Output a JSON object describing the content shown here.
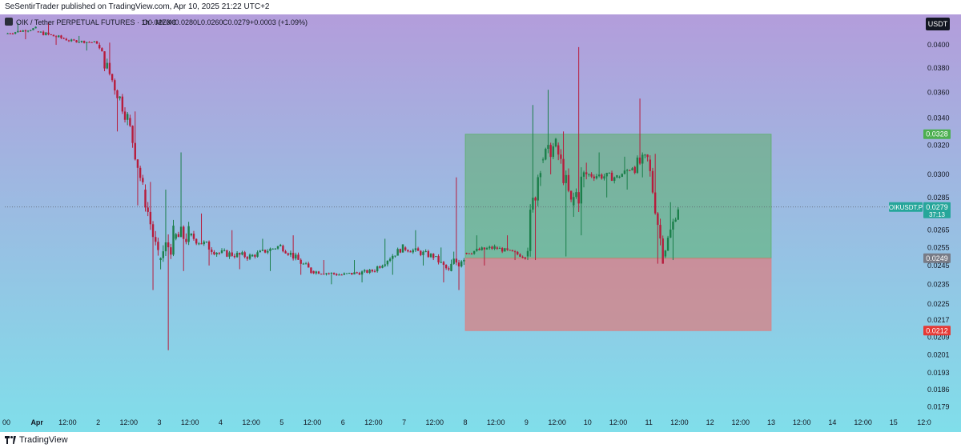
{
  "header": {
    "published": "SeSentirTrader published on TradingView.com, Apr 10, 2025 21:22 UTC+2"
  },
  "legend": {
    "symbol": "OIK / Tether PERPETUAL FUTURES · 1h · MEXC",
    "open": "O0.0276",
    "high": "H0.0280",
    "low": "L0.0260",
    "close": "C0.0279",
    "change": "+0.0003 (+1.09%)"
  },
  "currency_badge": "USDT",
  "footer": {
    "brand": "TradingView"
  },
  "colors": {
    "bg_top": "#b39ddb",
    "bg_bottom": "#80deea",
    "up": "#1b7f4a",
    "down": "#b71c3c",
    "profit_zone": "#4caf50",
    "loss_zone": "#e57373",
    "target_label": "#4caf50",
    "stop_label": "#e53935",
    "entry_label": "#787b86",
    "last_price_label": "#26a69a"
  },
  "chart_data": {
    "type": "candlestick",
    "symbol": "OIKUSDT.P",
    "interval": "1h",
    "exchange": "MEXC",
    "y_axis": {
      "ticks": [
        "0.0400",
        "0.0380",
        "0.0360",
        "0.0340",
        "0.0320",
        "0.0300",
        "0.0285",
        "0.0265",
        "0.0255",
        "0.0245",
        "0.0235",
        "0.0225",
        "0.0217",
        "0.0209",
        "0.0201",
        "0.0193",
        "0.0186",
        "0.0179"
      ],
      "scale": "log",
      "ylim": [
        0.0176,
        0.0428
      ]
    },
    "x_axis": {
      "ticks": [
        "00",
        "Apr",
        "12:00",
        "2",
        "12:00",
        "3",
        "12:00",
        "4",
        "12:00",
        "5",
        "12:00",
        "6",
        "12:00",
        "7",
        "12:00",
        "8",
        "12:00",
        "9",
        "12:00",
        "10",
        "12:00",
        "11",
        "12:00",
        "12",
        "12:00",
        "13",
        "12:00",
        "14",
        "12:00",
        "15",
        "12:0"
      ],
      "start": "Mar 31 00:00",
      "hours_per_tick": 12
    },
    "candles_hourly_close_approx": [
      {
        "t": "Mar 31 00:00",
        "o": 0.041,
        "h": 0.042,
        "l": 0.0405,
        "c": 0.0415
      },
      {
        "t": "Mar 31 12:00",
        "o": 0.0412,
        "h": 0.042,
        "l": 0.04,
        "c": 0.0405
      },
      {
        "t": "Apr 1 00:00",
        "o": 0.0404,
        "h": 0.0408,
        "l": 0.0395,
        "c": 0.0402
      },
      {
        "t": "Apr 1 12:00",
        "o": 0.04,
        "h": 0.0402,
        "l": 0.033,
        "c": 0.034
      },
      {
        "t": "Apr 2 00:00",
        "o": 0.034,
        "h": 0.0345,
        "l": 0.028,
        "c": 0.029
      },
      {
        "t": "Apr 2 06:00",
        "o": 0.029,
        "h": 0.0295,
        "l": 0.0232,
        "c": 0.0248
      },
      {
        "t": "Apr 2 12:00",
        "o": 0.0248,
        "h": 0.029,
        "l": 0.0203,
        "c": 0.026
      },
      {
        "t": "Apr 2 18:00",
        "o": 0.026,
        "h": 0.0315,
        "l": 0.0242,
        "c": 0.0262
      },
      {
        "t": "Apr 3 00:00",
        "o": 0.0262,
        "h": 0.0275,
        "l": 0.0245,
        "c": 0.0252
      },
      {
        "t": "Apr 3 12:00",
        "o": 0.0252,
        "h": 0.0265,
        "l": 0.0243,
        "c": 0.025
      },
      {
        "t": "Apr 4 00:00",
        "o": 0.025,
        "h": 0.026,
        "l": 0.0242,
        "c": 0.0256
      },
      {
        "t": "Apr 4 12:00",
        "o": 0.0256,
        "h": 0.0262,
        "l": 0.024,
        "c": 0.0242
      },
      {
        "t": "Apr 5 00:00",
        "o": 0.0242,
        "h": 0.0248,
        "l": 0.0235,
        "c": 0.024
      },
      {
        "t": "Apr 5 12:00",
        "o": 0.024,
        "h": 0.0248,
        "l": 0.0236,
        "c": 0.0242
      },
      {
        "t": "Apr 6 00:00",
        "o": 0.0242,
        "h": 0.026,
        "l": 0.024,
        "c": 0.0255
      },
      {
        "t": "Apr 6 12:00",
        "o": 0.0255,
        "h": 0.0265,
        "l": 0.0245,
        "c": 0.025
      },
      {
        "t": "Apr 7 00:00",
        "o": 0.025,
        "h": 0.0255,
        "l": 0.0236,
        "c": 0.0242
      },
      {
        "t": "Apr 7 06:00",
        "o": 0.0242,
        "h": 0.0298,
        "l": 0.0232,
        "c": 0.0252
      },
      {
        "t": "Apr 7 12:00",
        "o": 0.0252,
        "h": 0.0262,
        "l": 0.0245,
        "c": 0.0255
      },
      {
        "t": "Apr 8 00:00",
        "o": 0.0255,
        "h": 0.0262,
        "l": 0.0248,
        "c": 0.025
      },
      {
        "t": "Apr 8 12:00",
        "o": 0.025,
        "h": 0.035,
        "l": 0.0248,
        "c": 0.031
      },
      {
        "t": "Apr 8 18:00",
        "o": 0.031,
        "h": 0.0362,
        "l": 0.03,
        "c": 0.032
      },
      {
        "t": "Apr 9 00:00",
        "o": 0.032,
        "h": 0.033,
        "l": 0.025,
        "c": 0.028
      },
      {
        "t": "Apr 9 06:00",
        "o": 0.028,
        "h": 0.0398,
        "l": 0.0262,
        "c": 0.03
      },
      {
        "t": "Apr 9 12:00",
        "o": 0.03,
        "h": 0.0315,
        "l": 0.0285,
        "c": 0.0298
      },
      {
        "t": "Apr 10 00:00",
        "o": 0.0298,
        "h": 0.0312,
        "l": 0.029,
        "c": 0.0305
      },
      {
        "t": "Apr 10 06:00",
        "o": 0.0305,
        "h": 0.0355,
        "l": 0.0298,
        "c": 0.031
      },
      {
        "t": "Apr 10 12:00",
        "o": 0.031,
        "h": 0.0314,
        "l": 0.0246,
        "c": 0.025
      },
      {
        "t": "Apr 10 18:00",
        "o": 0.025,
        "h": 0.0282,
        "l": 0.0248,
        "c": 0.0279
      }
    ],
    "position": {
      "type": "long",
      "start": "Apr 7 12:00",
      "end": "Apr 12 12:00",
      "entry": "0.0249",
      "target": "0.0328",
      "stop": "0.0212"
    },
    "last_price": {
      "symbol": "OIKUSDT.P",
      "price": "0.0279",
      "countdown": "37:13"
    },
    "grid": false,
    "legend_placement": "top-left"
  }
}
